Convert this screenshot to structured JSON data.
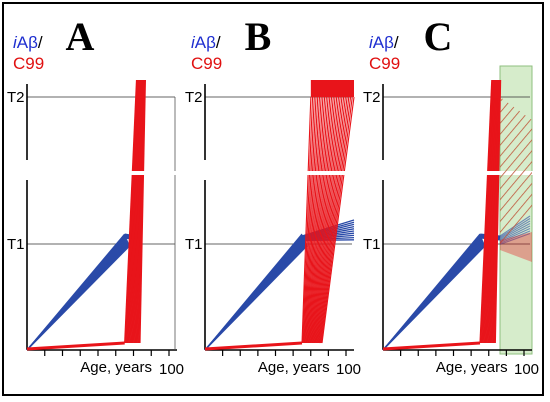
{
  "figure": {
    "panels": [
      {
        "id": "A",
        "letter": "A",
        "ylabel_italic": "i",
        "ylabel_main": "Aβ",
        "ylabel_slash": "/",
        "ylabel_c": "C99",
        "t2": "T2",
        "t1": "T1",
        "xlabel": "Age, years",
        "xtick": "100",
        "variant": "A"
      },
      {
        "id": "B",
        "letter": "B",
        "ylabel_italic": "i",
        "ylabel_main": "Aβ",
        "ylabel_slash": "/",
        "ylabel_c": "C99",
        "t2": "T2",
        "t1": "T1",
        "xlabel": "Age, years",
        "xtick": "100",
        "variant": "B"
      },
      {
        "id": "C",
        "letter": "C",
        "ylabel_italic": "i",
        "ylabel_main": "Aβ",
        "ylabel_slash": "/",
        "ylabel_c": "C99",
        "t2": "T2",
        "t1": "T1",
        "xlabel": "Age, years",
        "xtick": "100",
        "variant": "C"
      }
    ],
    "colors": {
      "iabeta": "#2a4aa8",
      "c99": "#e8141a",
      "hatch": "#c0563a",
      "treatment_box": "#d6eccb",
      "axis": "#000000"
    }
  }
}
